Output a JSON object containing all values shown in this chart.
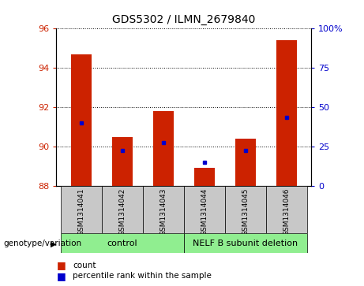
{
  "title": "GDS5302 / ILMN_2679840",
  "samples": [
    "GSM1314041",
    "GSM1314042",
    "GSM1314043",
    "GSM1314044",
    "GSM1314045",
    "GSM1314046"
  ],
  "bar_color": "#CC2200",
  "dot_color": "#0000CC",
  "ylim_left": [
    88,
    96
  ],
  "ylim_right": [
    0,
    100
  ],
  "yticks_left": [
    88,
    90,
    92,
    94,
    96
  ],
  "yticks_right": [
    0,
    25,
    50,
    75,
    100
  ],
  "yticklabels_right": [
    "0",
    "25",
    "50",
    "75",
    "100%"
  ],
  "bar_bottom": 88,
  "bar_values": [
    94.7,
    90.5,
    91.8,
    88.9,
    90.4,
    95.4
  ],
  "dot_values": [
    91.2,
    89.8,
    90.2,
    89.2,
    89.8,
    91.5
  ],
  "bar_width": 0.5,
  "left_label_color": "#CC2200",
  "right_label_color": "#0000CC",
  "genotype_label": "genotype/variation",
  "legend_count": "count",
  "legend_percentile": "percentile rank within the sample",
  "sample_box_color": "#C8C8C8",
  "group_box_green": "#90EE90",
  "groups_info": [
    [
      0,
      2,
      "control"
    ],
    [
      3,
      5,
      "NELF B subunit deletion"
    ]
  ]
}
